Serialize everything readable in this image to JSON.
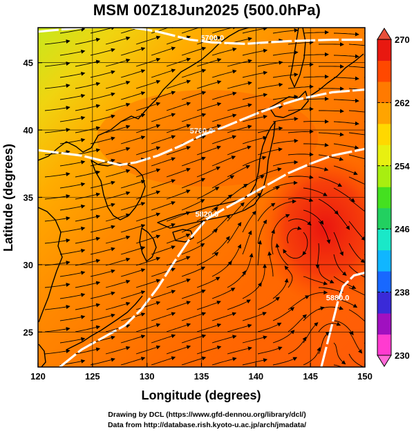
{
  "title": "MSM 00Z18Jun2025 (500.0hPa)",
  "xaxis": {
    "label": "Longitude (degrees)",
    "range": [
      120,
      150
    ],
    "ticks": [
      120,
      125,
      130,
      135,
      140,
      145,
      150
    ]
  },
  "yaxis": {
    "label": "Latitude  (degrees)",
    "range": [
      22.4,
      47.6
    ],
    "ticks": [
      25,
      30,
      35,
      40,
      45
    ]
  },
  "grid": true,
  "colorbar": {
    "unit_range": [
      230,
      270
    ],
    "labels": [
      270,
      262,
      254,
      246,
      238,
      230
    ],
    "colors": [
      "#ff3bd0",
      "#a010c0",
      "#3a2ad8",
      "#1868ff",
      "#10b6ff",
      "#1ae8c8",
      "#22d060",
      "#44e020",
      "#a8ee10",
      "#e8f010",
      "#ffd800",
      "#ffa400",
      "#ff7a00",
      "#ff4800",
      "#e81810"
    ]
  },
  "contours": [
    {
      "label": "5700.0",
      "points": [
        [
          120,
          47.3
        ],
        [
          124,
          47.6
        ],
        [
          128,
          47.7
        ],
        [
          131,
          47.3
        ],
        [
          134,
          46.7
        ],
        [
          136,
          46.5
        ],
        [
          139,
          46.4
        ],
        [
          141,
          46.5
        ],
        [
          143,
          46.6
        ],
        [
          147,
          46.7
        ],
        [
          150,
          46.7
        ]
      ]
    },
    {
      "label": "5760.0",
      "points": [
        [
          120,
          38.5
        ],
        [
          122,
          38.3
        ],
        [
          124,
          38.1
        ],
        [
          126,
          37.7
        ],
        [
          127.5,
          37.4
        ],
        [
          129,
          37.6
        ],
        [
          131,
          38.1
        ],
        [
          133,
          38.8
        ],
        [
          135,
          39.6
        ],
        [
          137,
          40.2
        ],
        [
          138.5,
          40.7
        ],
        [
          140,
          41.2
        ],
        [
          142,
          41.8
        ],
        [
          144,
          42.3
        ],
        [
          147,
          42.8
        ],
        [
          150,
          43.0
        ]
      ]
    },
    {
      "label": "5820.0",
      "points": [
        [
          122,
          22.4
        ],
        [
          124,
          23.7
        ],
        [
          126,
          24.6
        ],
        [
          128,
          25.5
        ],
        [
          129.5,
          26.7
        ],
        [
          131,
          28.3
        ],
        [
          132.5,
          30.2
        ],
        [
          134,
          32.0
        ],
        [
          135.5,
          33.4
        ],
        [
          137,
          34.1
        ],
        [
          139,
          35.0
        ],
        [
          141,
          35.9
        ],
        [
          143,
          36.8
        ],
        [
          145,
          37.5
        ],
        [
          147,
          38.1
        ],
        [
          150,
          38.6
        ]
      ]
    },
    {
      "label": "5880.0",
      "points": [
        [
          146,
          22.4
        ],
        [
          146.5,
          24.0
        ],
        [
          147,
          25.6
        ],
        [
          147.5,
          27.2
        ],
        [
          148,
          28.4
        ],
        [
          149,
          29.2
        ],
        [
          150,
          29.4
        ]
      ]
    }
  ],
  "credits": [
    "Drawing by DCL (https://www.gfd-dennou.org/library/dcl/)",
    "Data from http://database.rish.kyoto-u.ac.jp/arch/jmadata/"
  ]
}
